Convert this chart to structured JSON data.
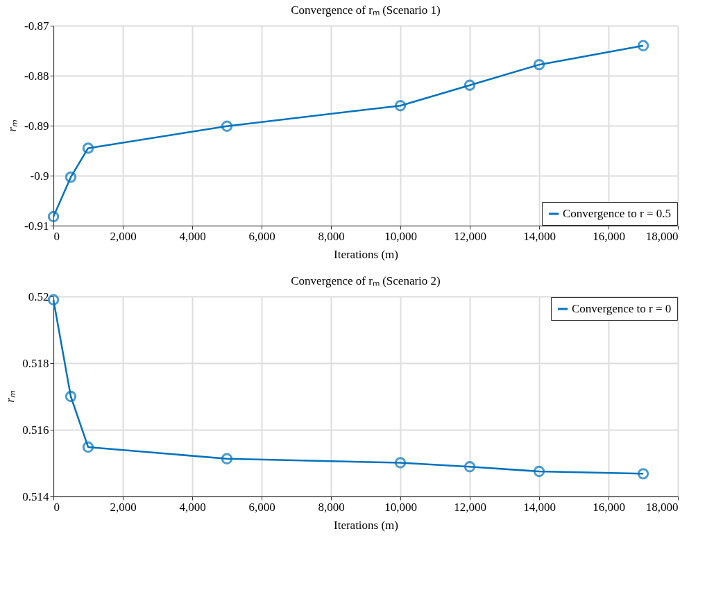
{
  "chart_data": [
    {
      "type": "line",
      "title": "Convergence of rₘ (Scenario 1)",
      "xlabel": "Iterations (m)",
      "ylabel": "rₘ",
      "x": [
        0,
        500,
        1000,
        5000,
        10000,
        12000,
        14000,
        17000
      ],
      "series": [
        {
          "name": "Convergence to r = 0.5",
          "color": "#0072bd",
          "values": [
            -0.9082,
            -0.9003,
            -0.8945,
            -0.8901,
            -0.886,
            -0.8819,
            -0.8778,
            -0.874
          ]
        }
      ],
      "xlim": [
        0,
        18000
      ],
      "xticks": [
        0,
        {
          "value": 2000,
          "label": "2,000"
        },
        {
          "value": 4000,
          "label": "4,000"
        },
        {
          "value": 6000,
          "label": "6,000"
        },
        {
          "value": 8000,
          "label": "8,000"
        },
        {
          "value": 10000,
          "label": "10,000"
        },
        {
          "value": 12000,
          "label": "12,000"
        },
        {
          "value": 14000,
          "label": "14,000"
        },
        {
          "value": 16000,
          "label": "16,000"
        },
        {
          "value": 18000,
          "label": "18,000"
        }
      ],
      "ylim": [
        -0.91,
        -0.87
      ],
      "yticks": [
        -0.91,
        -0.9,
        -0.89,
        -0.88,
        -0.87
      ],
      "grid": true,
      "legend": "bottom right",
      "marker": "circle",
      "line_style": "solid"
    },
    {
      "type": "line",
      "title": "Convergence of rₘ (Scenario 2)",
      "xlabel": "Iterations (m)",
      "ylabel": "rₘ",
      "x": [
        0,
        500,
        1000,
        5000,
        10000,
        12000,
        14000,
        17000
      ],
      "series": [
        {
          "name": "Convergence to r = 0",
          "color": "#0072bd",
          "values": [
            0.5199,
            0.517,
            0.51548,
            0.51513,
            0.51501,
            0.51489,
            0.51475,
            0.51468
          ]
        }
      ],
      "xlim": [
        0,
        18000
      ],
      "xticks": [
        0,
        {
          "value": 2000,
          "label": "2,000"
        },
        {
          "value": 4000,
          "label": "4,000"
        },
        {
          "value": 6000,
          "label": "6,000"
        },
        {
          "value": 8000,
          "label": "8,000"
        },
        {
          "value": 10000,
          "label": "10,000"
        },
        {
          "value": 12000,
          "label": "12,000"
        },
        {
          "value": 14000,
          "label": "14,000"
        },
        {
          "value": 16000,
          "label": "16,000"
        },
        {
          "value": 18000,
          "label": "18,000"
        }
      ],
      "ylim": [
        0.514,
        0.52
      ],
      "yticks": [
        0.514,
        0.516,
        0.518,
        0.52
      ],
      "grid": true,
      "legend": "top right",
      "marker": "circle",
      "line_style": "solid"
    }
  ]
}
